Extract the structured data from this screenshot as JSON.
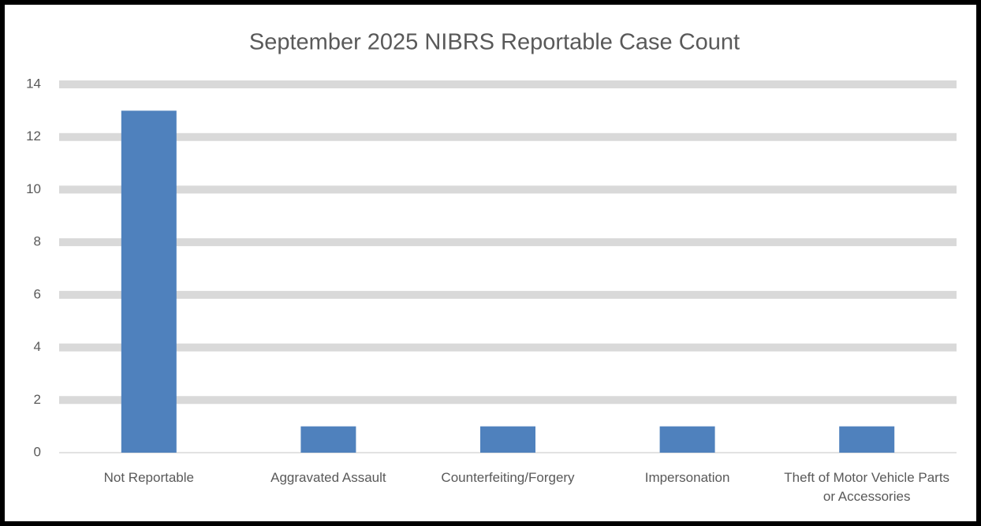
{
  "chart_data": {
    "type": "bar",
    "title": "September 2025 NIBRS Reportable Case Count",
    "categories": [
      "Not Reportable",
      "Aggravated Assault",
      "Counterfeiting/Forgery",
      "Impersonation",
      "Theft of Motor Vehicle Parts or Accessories"
    ],
    "values": [
      13,
      1,
      1,
      1,
      1
    ],
    "color": "#4f81bd",
    "ylim": [
      0,
      14
    ],
    "yticks": [
      0,
      2,
      4,
      6,
      8,
      10,
      12,
      14
    ],
    "grid": true
  }
}
